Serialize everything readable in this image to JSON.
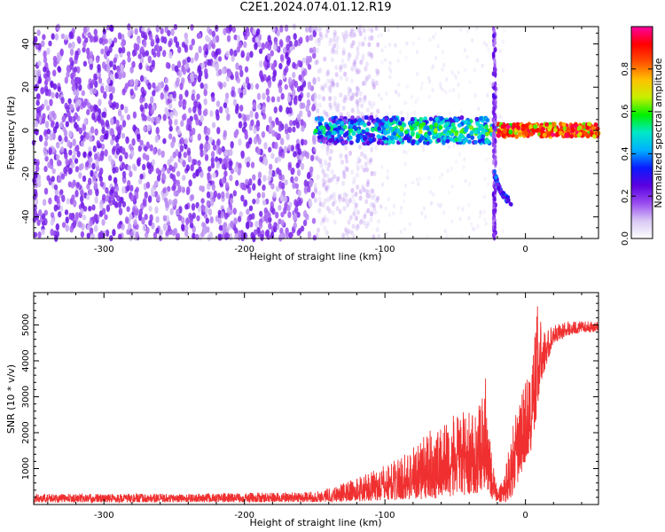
{
  "figure": {
    "title": "C2E1.2024.074.01.12.R19"
  },
  "chart_data": [
    {
      "type": "heatmap",
      "name": "spectrogram",
      "xlabel": "Height of straight line (km)",
      "ylabel": "Frequency (Hz)",
      "xlim": [
        -350,
        52
      ],
      "ylim": [
        -50,
        48
      ],
      "xticks": [
        -300,
        -200,
        -100,
        0
      ],
      "yticks": [
        -40,
        -20,
        0,
        20,
        40
      ],
      "colorbar": {
        "label": "Normalized spectral amplitude",
        "range": [
          0,
          1
        ],
        "ticks": [
          0.0,
          0.2,
          0.4,
          0.6,
          0.8
        ],
        "colors": [
          "#ffffff",
          "#d8c8f4",
          "#9a4cf0",
          "#5a00e0",
          "#0a1aff",
          "#00b0ff",
          "#00e8c8",
          "#00f000",
          "#c8f000",
          "#ffc000",
          "#ff5000",
          "#ff0000",
          "#ff00a0"
        ]
      },
      "features": {
        "noise_region_km": [
          -350,
          -150
        ],
        "signal_band_hz": 0,
        "signal_start_km": -150,
        "vertical_spike_km": -22,
        "descending_tail": [
          [
            -22,
            -20
          ],
          [
            -18,
            -28
          ],
          [
            -10,
            -34
          ]
        ]
      }
    },
    {
      "type": "line",
      "name": "snr",
      "xlabel": "Height of straight line (km)",
      "ylabel": "SNR (10 * v/v)",
      "xlim": [
        -350,
        52
      ],
      "ylim": [
        0,
        5900
      ],
      "xticks": [
        -300,
        -200,
        -100,
        0
      ],
      "yticks": [
        1000,
        2000,
        3000,
        4000,
        5000
      ],
      "color": "#f03030",
      "envelope": {
        "x": [
          -350,
          -250,
          -150,
          -130,
          -110,
          -90,
          -70,
          -55,
          -45,
          -35,
          -28,
          -24,
          -20,
          -15,
          -10,
          -5,
          0,
          5,
          8,
          12,
          20,
          30,
          40,
          52
        ],
        "lo": [
          60,
          60,
          70,
          80,
          100,
          120,
          150,
          200,
          250,
          300,
          500,
          150,
          50,
          50,
          200,
          600,
          1200,
          1500,
          2500,
          3500,
          4500,
          4700,
          4800,
          4800
        ],
        "hi": [
          300,
          300,
          350,
          600,
          900,
          1300,
          2000,
          2400,
          2600,
          2500,
          3600,
          1500,
          400,
          900,
          2000,
          2800,
          3500,
          4000,
          5900,
          4800,
          5000,
          5100,
          5100,
          5100
        ]
      }
    }
  ]
}
